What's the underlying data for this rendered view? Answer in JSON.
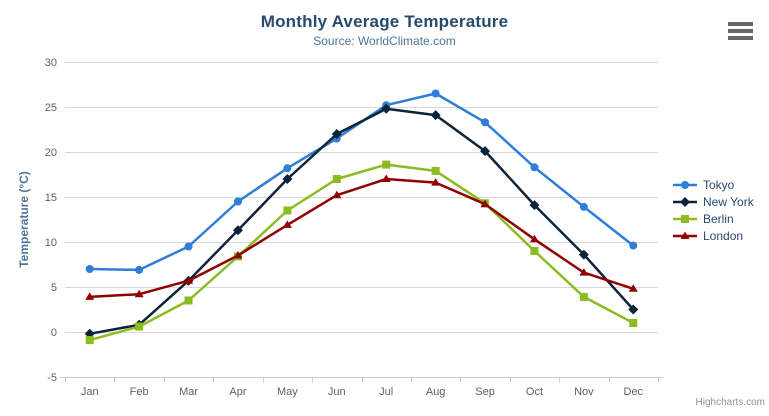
{
  "header": {
    "title": "Monthly Average Temperature",
    "subtitle": "Source: WorldClimate.com"
  },
  "credits": {
    "label": "Highcharts.com"
  },
  "icons": {
    "export_menu": "hamburger-icon"
  },
  "colors": {
    "title": "#274b6d",
    "subtitle": "#4d759e",
    "axis_label": "#606060",
    "axis_title": "#4d759e",
    "gridline": "#d8d8d8",
    "axis_line": "#c0d0e0",
    "legend_text": "#274b6d",
    "credits": "#909090",
    "menu_icon": "#666666"
  },
  "chart_data": {
    "type": "line",
    "title": "Monthly Average Temperature",
    "subtitle": "Source: WorldClimate.com",
    "categories": [
      "Jan",
      "Feb",
      "Mar",
      "Apr",
      "May",
      "Jun",
      "Jul",
      "Aug",
      "Sep",
      "Oct",
      "Nov",
      "Dec"
    ],
    "series": [
      {
        "name": "Tokyo",
        "color": "#2f7ed8",
        "marker": "circle",
        "values": [
          7.0,
          6.9,
          9.5,
          14.5,
          18.2,
          21.5,
          25.2,
          26.5,
          23.3,
          18.3,
          13.9,
          9.6
        ]
      },
      {
        "name": "New York",
        "color": "#0d233a",
        "marker": "diamond",
        "values": [
          -0.2,
          0.8,
          5.7,
          11.3,
          17.0,
          22.0,
          24.8,
          24.1,
          20.1,
          14.1,
          8.6,
          2.5
        ]
      },
      {
        "name": "Berlin",
        "color": "#8bbc21",
        "marker": "square",
        "values": [
          -0.9,
          0.6,
          3.5,
          8.4,
          13.5,
          17.0,
          18.6,
          17.9,
          14.3,
          9.0,
          3.9,
          1.0
        ]
      },
      {
        "name": "London",
        "color": "#910000",
        "marker": "triangle",
        "values": [
          3.9,
          4.2,
          5.7,
          8.5,
          11.9,
          15.2,
          17.0,
          16.6,
          14.2,
          10.3,
          6.6,
          4.8
        ]
      }
    ],
    "xlabel": "",
    "ylabel": "Temperature (°C)",
    "ylim": [
      -5,
      30
    ],
    "ytick_step": 5,
    "grid": true,
    "legend_position": "right"
  }
}
